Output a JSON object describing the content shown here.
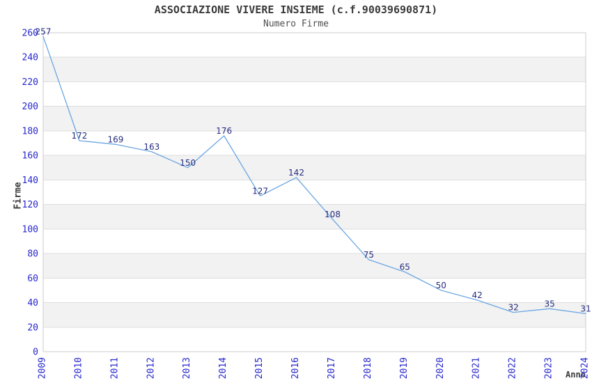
{
  "chart_data": {
    "type": "line",
    "title": "ASSOCIAZIONE VIVERE INSIEME (c.f.90039690871)",
    "subtitle": "Numero Firme",
    "xlabel": "Anno",
    "ylabel": "Firme",
    "categories": [
      "2009",
      "2010",
      "2011",
      "2012",
      "2013",
      "2014",
      "2015",
      "2016",
      "2017",
      "2018",
      "2019",
      "2020",
      "2021",
      "2022",
      "2023",
      "2024"
    ],
    "series": [
      {
        "name": "Numero Firme",
        "values": [
          257,
          172,
          169,
          163,
          150,
          176,
          127,
          142,
          108,
          75,
          65,
          50,
          42,
          32,
          35,
          31
        ]
      }
    ],
    "ylim": [
      0,
      260
    ],
    "ytick_step": 20,
    "grid": "horizontal",
    "bands": "alternating-horizontal",
    "legend": "none",
    "point_markers": "none",
    "colors": {
      "line": "#6BA6E2",
      "band": "#F2F2F2",
      "gridline": "#DEDEDE",
      "plot_border": "#CCCCCC",
      "tick_label": "#2626CE",
      "value_label": "#252C7E",
      "title": "#3A3A3A",
      "subtitle": "#4F4F4F",
      "axis_title": "#3A3A3A",
      "background": "#FFFFFF"
    }
  }
}
